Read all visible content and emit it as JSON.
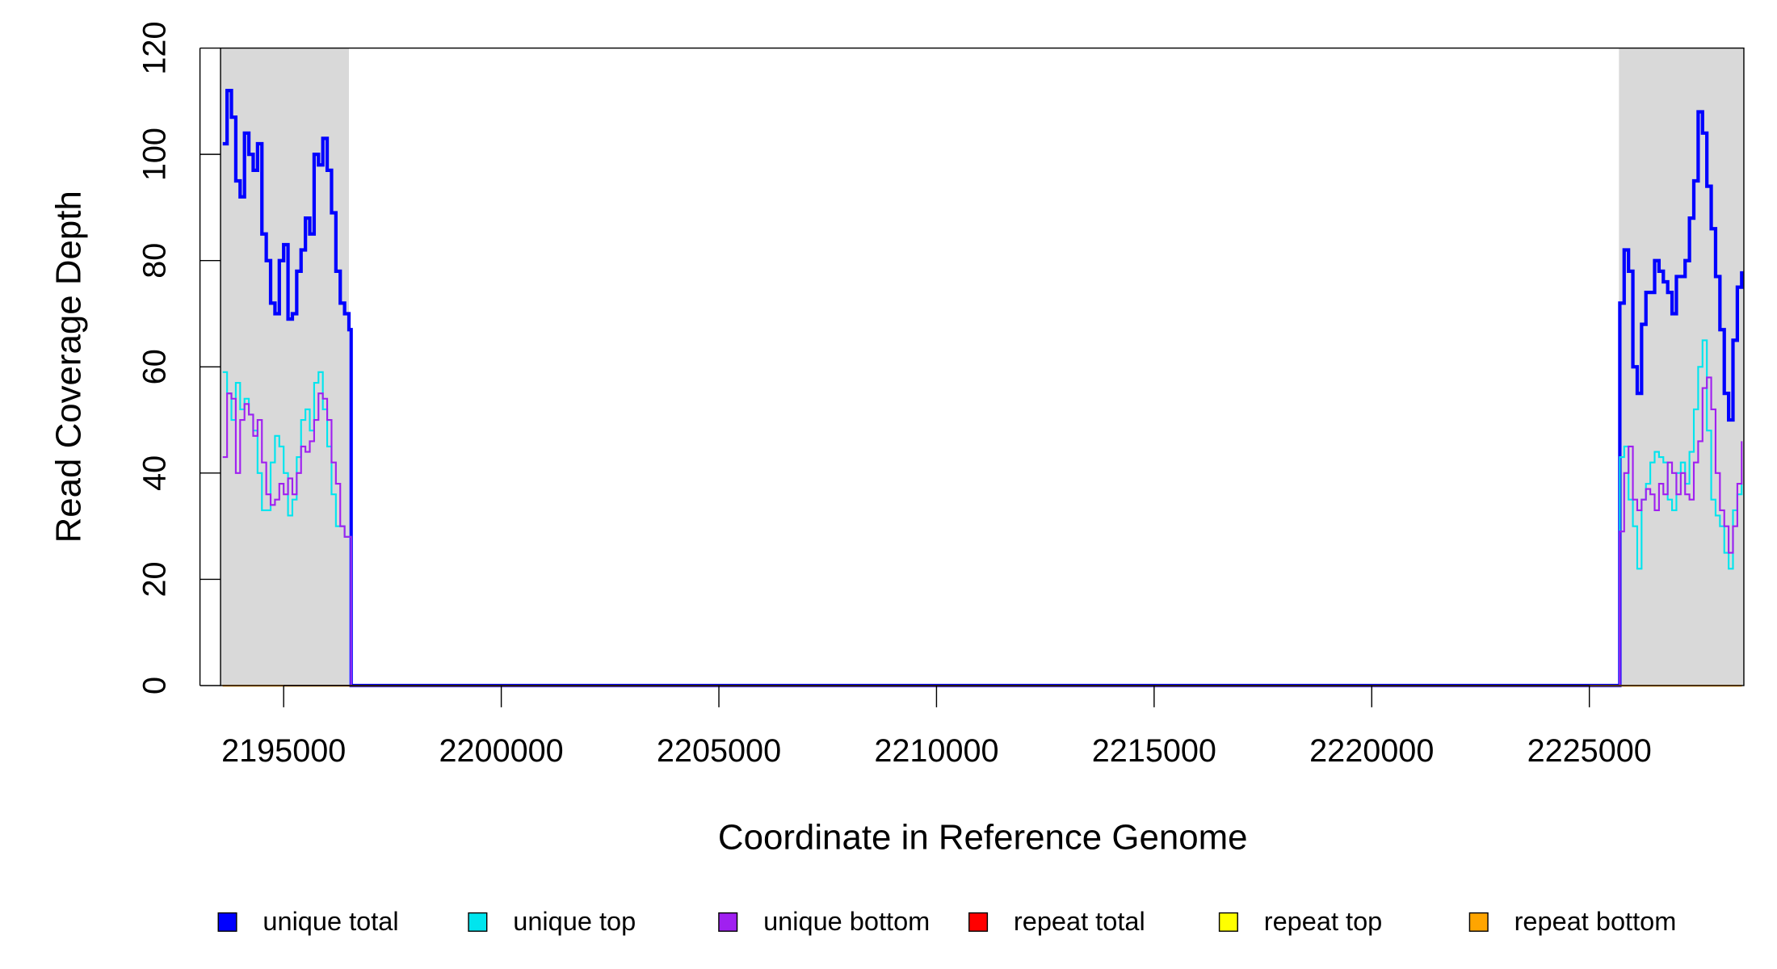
{
  "chart_data": {
    "type": "line",
    "step": true,
    "xlabel": "Coordinate in Reference Genome",
    "ylabel": "Read Coverage Depth",
    "xlim": [
      2193550,
      2228550
    ],
    "ylim": [
      0,
      120
    ],
    "xticks": [
      2195000,
      2200000,
      2205000,
      2210000,
      2215000,
      2220000,
      2225000
    ],
    "yticks": [
      0,
      20,
      40,
      60,
      80,
      100,
      120
    ],
    "shaded_regions": [
      [
        2193550,
        2196500
      ],
      [
        2225680,
        2228550
      ]
    ],
    "shade_color": "#d9d9d9",
    "legend": "bottom",
    "x": [
      2193600,
      2193700,
      2193800,
      2193900,
      2194000,
      2194100,
      2194200,
      2194300,
      2194400,
      2194500,
      2194600,
      2194700,
      2194800,
      2194900,
      2195000,
      2195100,
      2195200,
      2195300,
      2195400,
      2195500,
      2195600,
      2195700,
      2195800,
      2195900,
      2196000,
      2196100,
      2196200,
      2196300,
      2196400,
      2196500,
      2196550,
      2225650,
      2225700,
      2225800,
      2225900,
      2226000,
      2226100,
      2226200,
      2226300,
      2226400,
      2226500,
      2226600,
      2226700,
      2226800,
      2226900,
      2227000,
      2227100,
      2227200,
      2227300,
      2227400,
      2227500,
      2227600,
      2227700,
      2227800,
      2227900,
      2228000,
      2228100,
      2228200,
      2228300,
      2228400,
      2228500
    ],
    "series": [
      {
        "name": "unique total",
        "color": "#0000ff",
        "width": 3,
        "values": [
          102,
          112,
          107,
          95,
          92,
          104,
          100,
          97,
          102,
          85,
          80,
          72,
          70,
          80,
          83,
          69,
          70,
          78,
          82,
          88,
          85,
          100,
          98,
          103,
          97,
          89,
          78,
          72,
          70,
          67,
          0,
          0,
          72,
          82,
          78,
          60,
          55,
          68,
          74,
          74,
          80,
          78,
          76,
          74,
          70,
          77,
          77,
          80,
          88,
          95,
          108,
          104,
          94,
          86,
          77,
          67,
          55,
          50,
          65,
          75,
          78
        ]
      },
      {
        "name": "unique top",
        "color": "#00e5ee",
        "width": 1.5,
        "values": [
          59,
          55,
          50,
          57,
          52,
          54,
          51,
          48,
          40,
          33,
          33,
          42,
          47,
          45,
          40,
          32,
          35,
          43,
          50,
          52,
          48,
          57,
          59,
          52,
          45,
          36,
          30,
          30,
          28,
          28,
          0,
          0,
          43,
          45,
          35,
          30,
          22,
          35,
          38,
          42,
          44,
          43,
          42,
          35,
          33,
          40,
          42,
          38,
          44,
          52,
          60,
          65,
          48,
          35,
          32,
          30,
          25,
          22,
          33,
          36,
          38
        ]
      },
      {
        "name": "unique bottom",
        "color": "#a020f0",
        "width": 1.5,
        "values": [
          43,
          55,
          54,
          40,
          50,
          53,
          51,
          47,
          50,
          42,
          36,
          34,
          35,
          38,
          36,
          39,
          36,
          40,
          45,
          44,
          46,
          50,
          55,
          54,
          50,
          42,
          38,
          30,
          28,
          28,
          0,
          0,
          29,
          40,
          45,
          35,
          33,
          35,
          37,
          36,
          33,
          38,
          36,
          42,
          40,
          36,
          40,
          36,
          35,
          42,
          46,
          56,
          58,
          52,
          40,
          33,
          30,
          25,
          30,
          38,
          46
        ]
      },
      {
        "name": "repeat total",
        "color": "#ff0000",
        "width": 1.5,
        "values": [
          0,
          0,
          0,
          0,
          0,
          0,
          0,
          0,
          0,
          0,
          0,
          0,
          0,
          0,
          0,
          0,
          0,
          0,
          0,
          0,
          0,
          0,
          0,
          0,
          0,
          0,
          0,
          0,
          0,
          0,
          0,
          0,
          0,
          0,
          0,
          0,
          0,
          0,
          0,
          0,
          0,
          0,
          0,
          0,
          0,
          0,
          0,
          0,
          0,
          0,
          0,
          0,
          0,
          0,
          0,
          0,
          0,
          0,
          0,
          0,
          0
        ]
      },
      {
        "name": "repeat top",
        "color": "#ffff00",
        "width": 1.5,
        "values": [
          0,
          0,
          0,
          0,
          0,
          0,
          0,
          0,
          0,
          0,
          0,
          0,
          0,
          0,
          0,
          0,
          0,
          0,
          0,
          0,
          0,
          0,
          0,
          0,
          0,
          0,
          0,
          0,
          0,
          0,
          0,
          0,
          0,
          0,
          0,
          0,
          0,
          0,
          0,
          0,
          0,
          0,
          0,
          0,
          0,
          0,
          0,
          0,
          0,
          0,
          0,
          0,
          0,
          0,
          0,
          0,
          0,
          0,
          0,
          0,
          0
        ]
      },
      {
        "name": "repeat bottom",
        "color": "#ffa500",
        "width": 1.5,
        "values": [
          0,
          0,
          0,
          0,
          0,
          0,
          0,
          0,
          0,
          0,
          0,
          0,
          0,
          0,
          0,
          0,
          0,
          0,
          0,
          0,
          0,
          0,
          0,
          0,
          0,
          0,
          0,
          0,
          0,
          0,
          0,
          0,
          0,
          0,
          0,
          0,
          0,
          0,
          0,
          0,
          0,
          0,
          0,
          0,
          0,
          0,
          0,
          0,
          0,
          0,
          0,
          0,
          0,
          0,
          0,
          0,
          0,
          0,
          0,
          0,
          0
        ]
      }
    ]
  }
}
